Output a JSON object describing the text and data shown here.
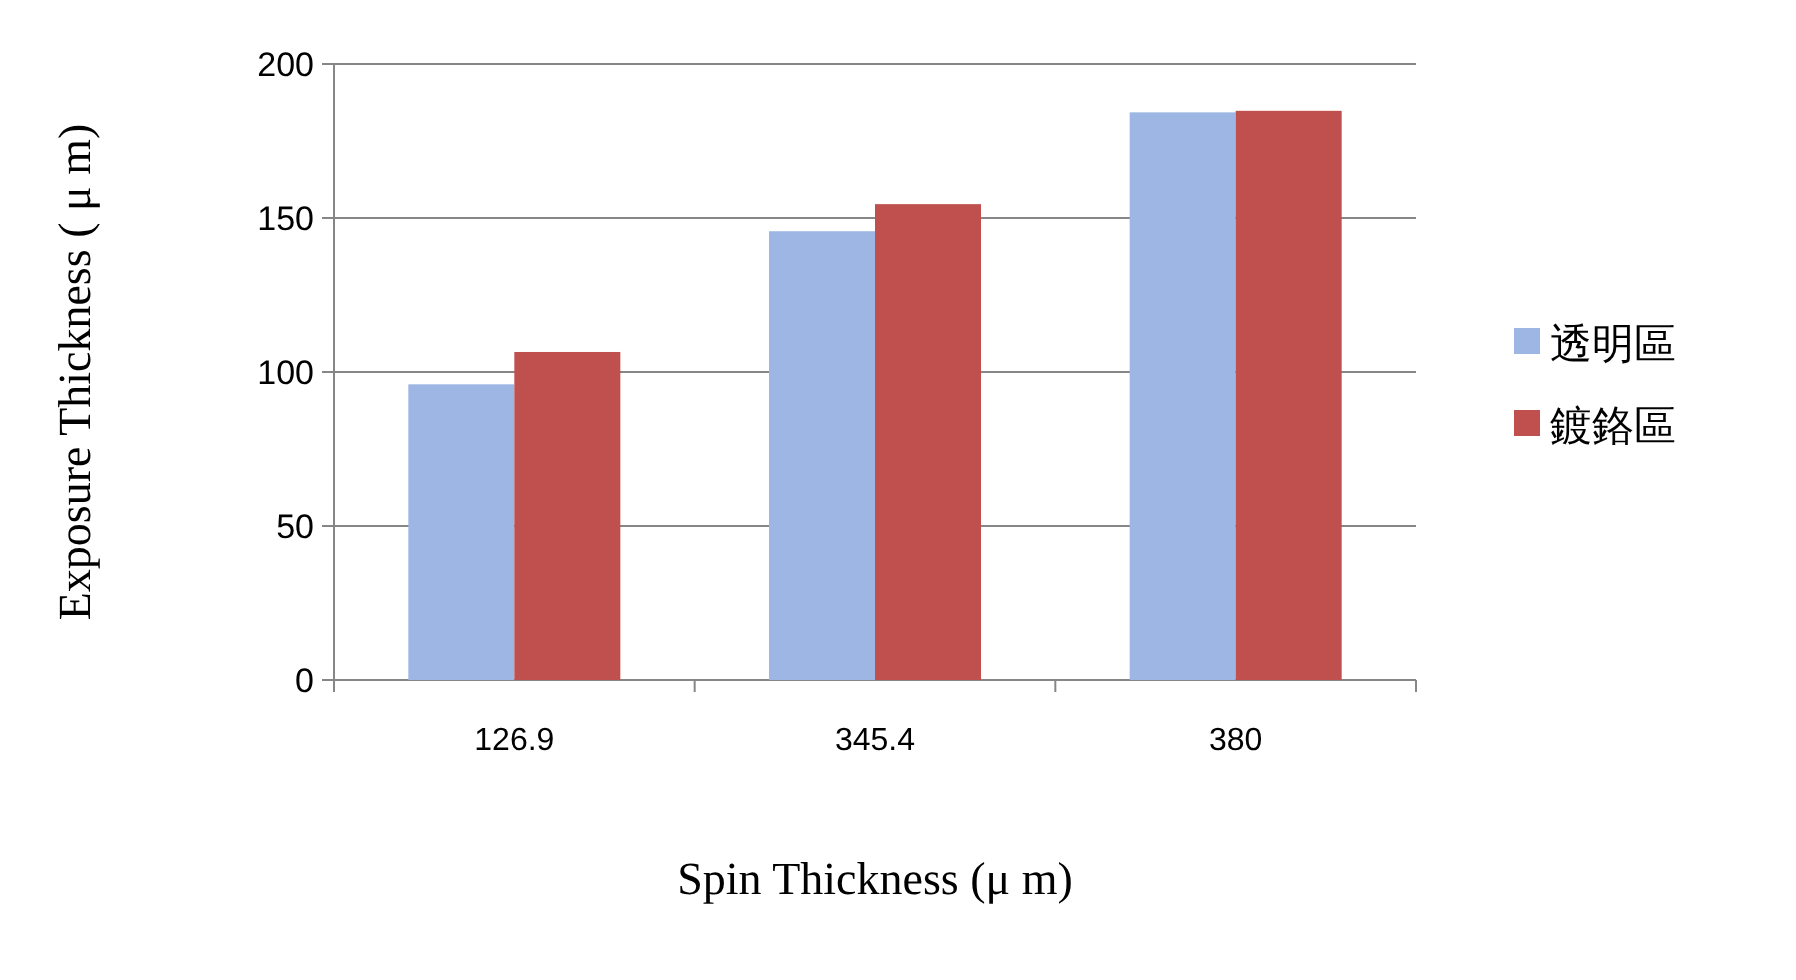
{
  "chart_data": {
    "type": "bar",
    "xlabel": "Spin Thickness (μ m)",
    "ylabel": "Exposure Thickness ( μ m)",
    "categories": [
      "126.9",
      "345.4",
      "380"
    ],
    "series": [
      {
        "name": "透明區",
        "color": "#9db6e4",
        "values": [
          96,
          145.7,
          184.3
        ]
      },
      {
        "name": "鍍鉻區",
        "color": "#c0504d",
        "values": [
          106.5,
          154.5,
          184.8
        ]
      }
    ],
    "ylim": [
      0,
      200
    ],
    "yticks": [
      0,
      50,
      100,
      150,
      200
    ],
    "grid": "y",
    "legend": "right"
  }
}
